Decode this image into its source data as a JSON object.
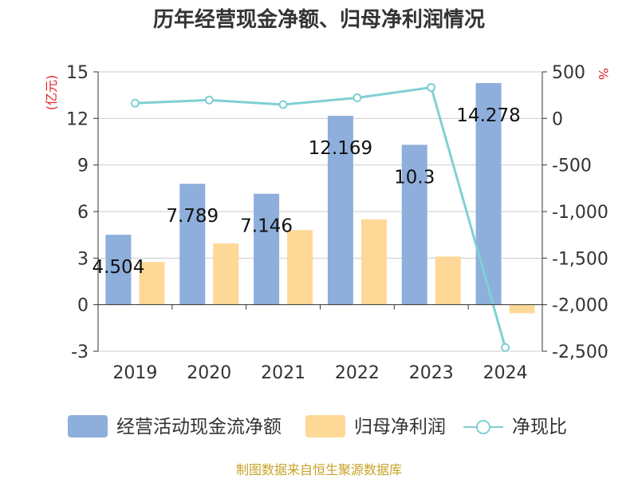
{
  "chart_data": {
    "type": "bar+line",
    "title": "历年经营现金净额、归母净利润情况",
    "categories": [
      "2019",
      "2020",
      "2021",
      "2022",
      "2023",
      "2024"
    ],
    "series": [
      {
        "name": "经营活动现金流净额",
        "type": "bar",
        "axis": "left",
        "values": [
          4.504,
          7.789,
          7.146,
          12.169,
          10.3,
          14.278
        ],
        "labels": [
          "4.504",
          "7.789",
          "7.146",
          "12.169",
          "10.3",
          "14.278"
        ]
      },
      {
        "name": "归母净利润",
        "type": "bar",
        "axis": "left",
        "values": [
          2.75,
          3.95,
          4.8,
          5.5,
          3.1,
          -0.55
        ]
      },
      {
        "name": "净现比",
        "type": "line",
        "axis": "right",
        "values": [
          163.8,
          197.2,
          148.9,
          221.3,
          332.3,
          -2459.6
        ]
      }
    ],
    "y_left": {
      "unit": "(亿元)",
      "min": -3,
      "max": 15,
      "ticks": [
        -3,
        0,
        3,
        6,
        9,
        12,
        15
      ],
      "tick_labels": [
        "-3",
        "0",
        "3",
        "6",
        "9",
        "12",
        "15"
      ]
    },
    "y_right": {
      "unit": "%",
      "min": -2500,
      "max": 500,
      "ticks": [
        -2500,
        -2000,
        -1500,
        -1000,
        -500,
        0,
        500
      ],
      "tick_labels": [
        "-2,500",
        "-2,000",
        "-1,500",
        "-1,000",
        "-500",
        "0",
        "500"
      ]
    },
    "legend": [
      "经营活动现金流净额",
      "归母净利润",
      "净现比"
    ],
    "legend_position": "bottom",
    "grid": true,
    "source": "制图数据来自恒生聚源数据库"
  },
  "colors": {
    "bar_cash": "#8eaedb",
    "bar_profit": "#fed897",
    "line": "#7fd0d4",
    "grid": "#cccccc",
    "axis": "#333333",
    "unit": "#e0262b",
    "source": "#c9a227"
  }
}
